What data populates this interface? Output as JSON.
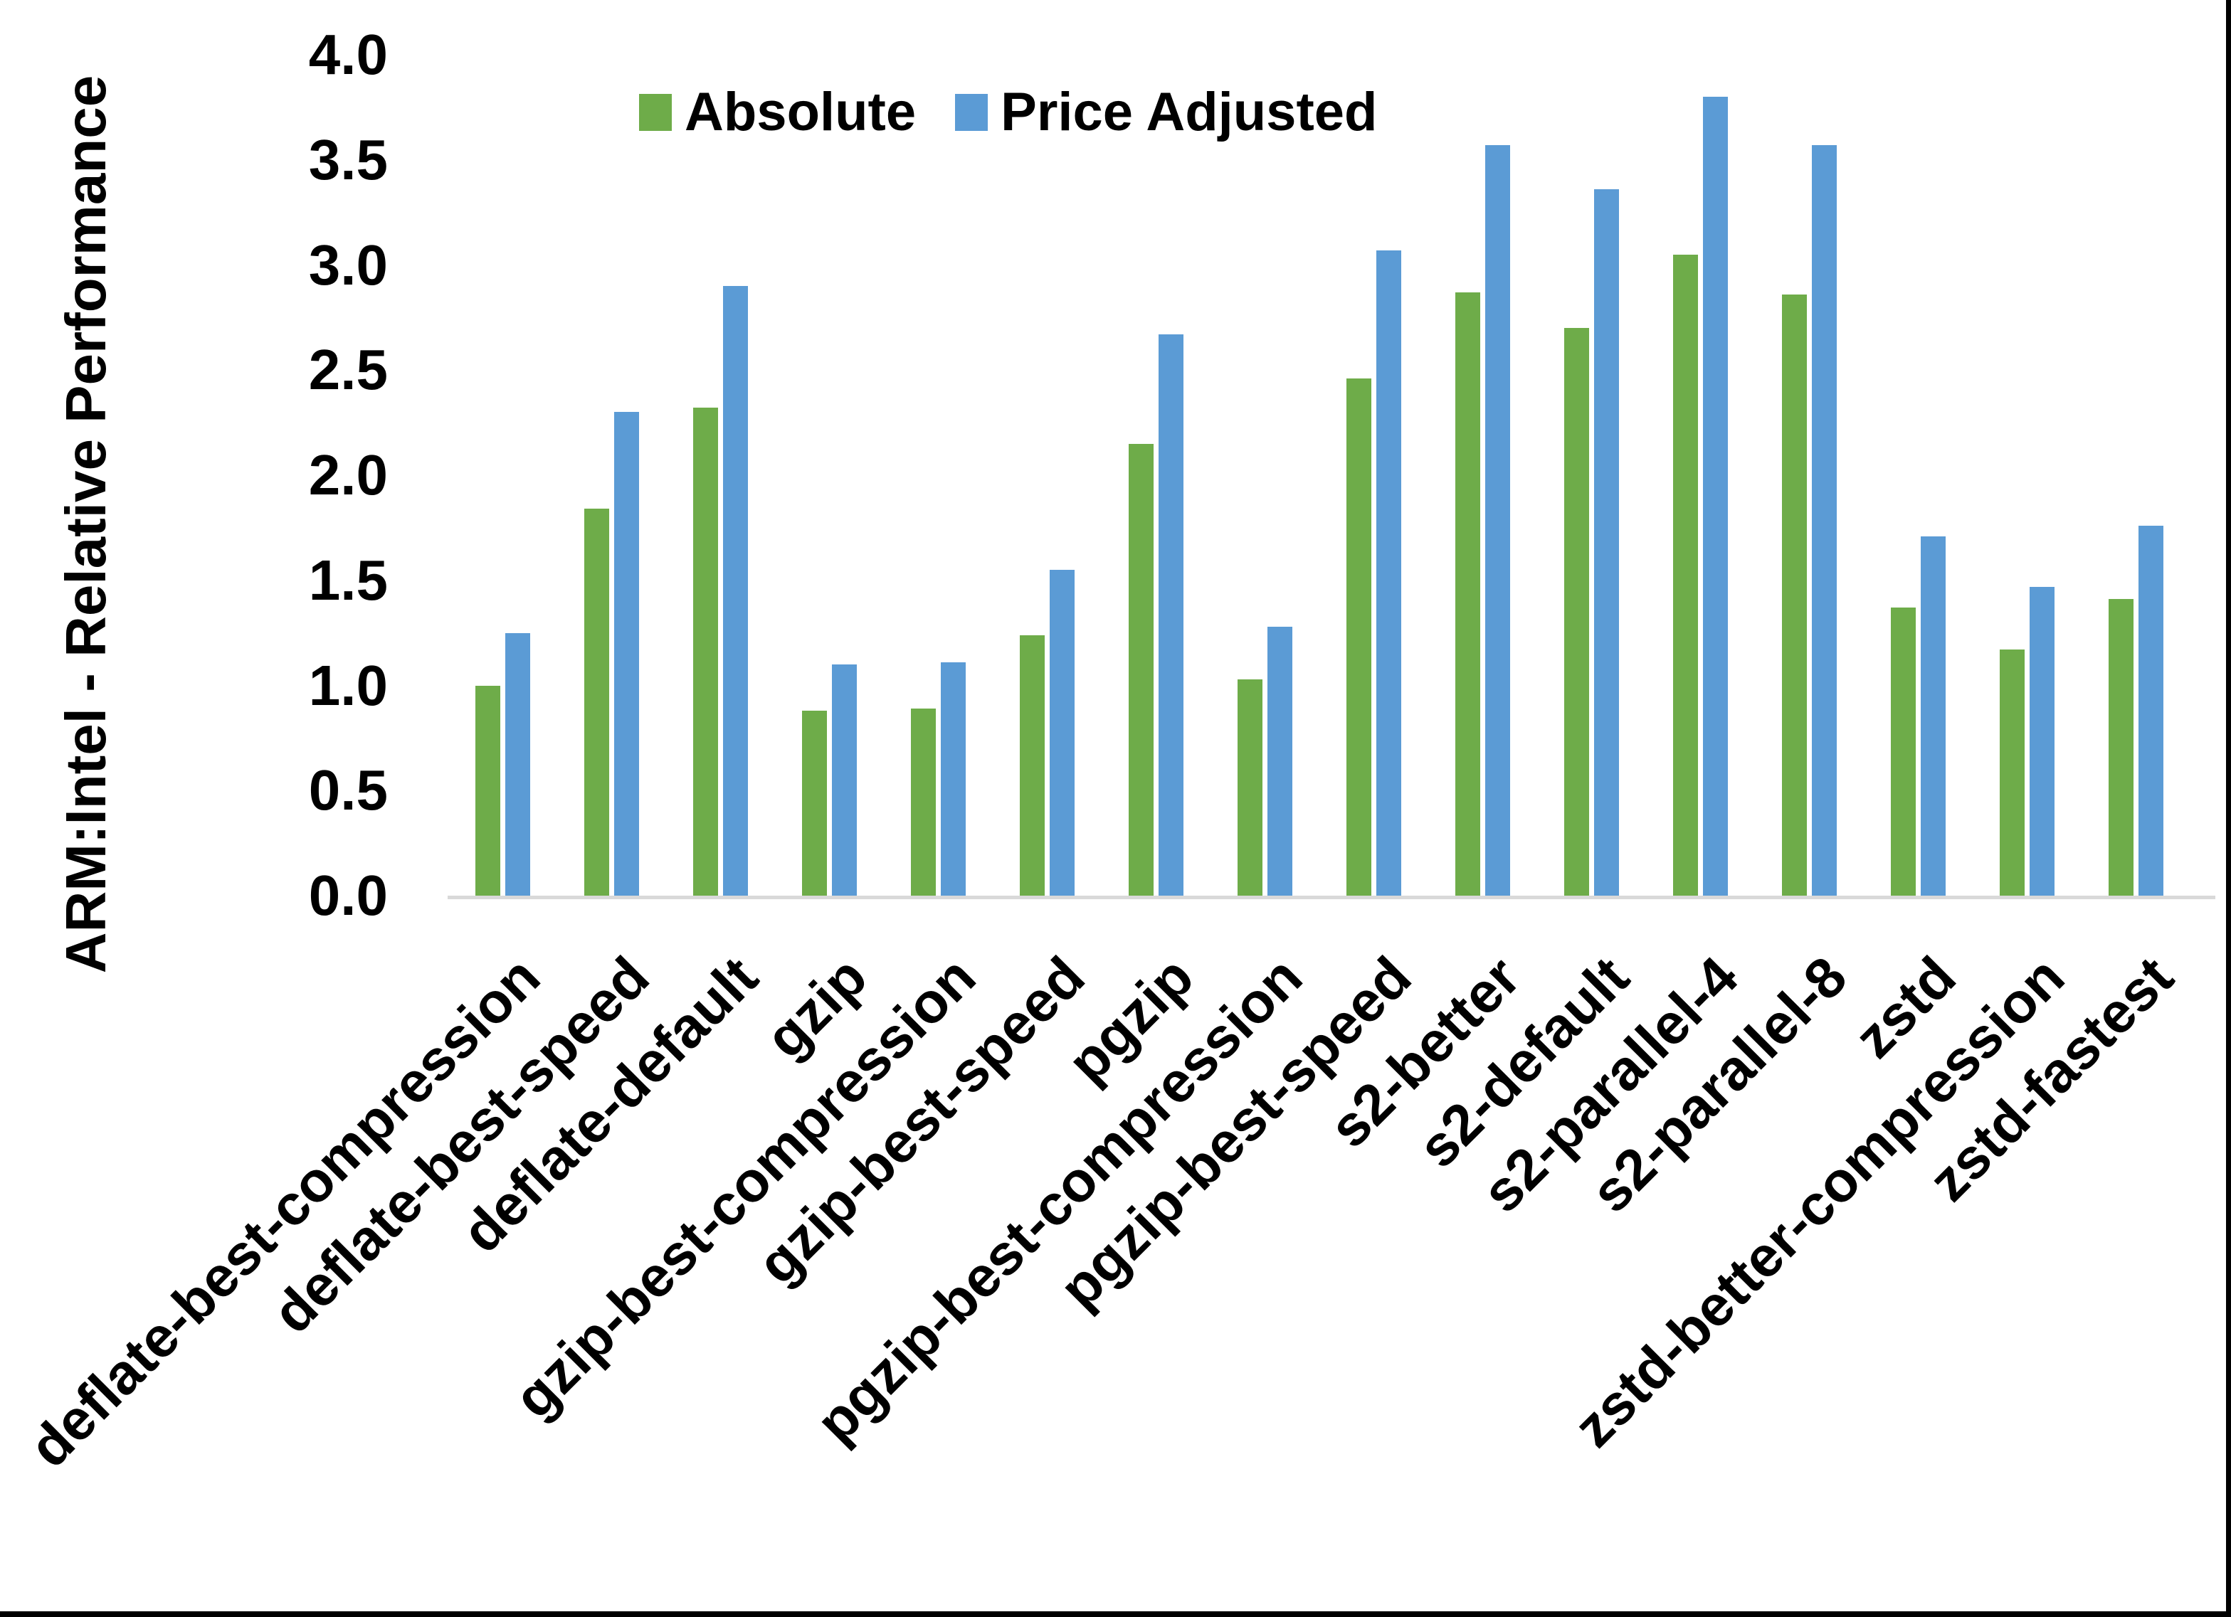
{
  "chart_data": {
    "type": "bar",
    "title": "",
    "xlabel": "",
    "ylabel": "ARM:Intel - Relative Performance",
    "ylim": [
      0,
      4
    ],
    "ytick_step": 0.5,
    "yticks": [
      "0.0",
      "0.5",
      "1.0",
      "1.5",
      "2.0",
      "2.5",
      "3.0",
      "3.5",
      "4.0"
    ],
    "grid": false,
    "legend_position": "top-left-of-center",
    "categories": [
      "deflate-best-compression",
      "deflate-best-speed",
      "deflate-default",
      "gzip",
      "gzip-best-compression",
      "gzip-best-speed",
      "pgzip",
      "pgzip-best-compression",
      "pgzip-best-speed",
      "s2-better",
      "s2-default",
      "s2-parallel-4",
      "s2-parallel-8",
      "zstd",
      "zstd-better-compression",
      "zstd-fastest"
    ],
    "series": [
      {
        "name": "Absolute",
        "color": "#6EAC49",
        "values": [
          1.0,
          1.84,
          2.32,
          0.88,
          0.89,
          1.24,
          2.15,
          1.03,
          2.46,
          2.87,
          2.7,
          3.05,
          2.86,
          1.37,
          1.17,
          1.41
        ]
      },
      {
        "name": "Price Adjusted",
        "color": "#5B9BD5",
        "values": [
          1.25,
          2.3,
          2.9,
          1.1,
          1.11,
          1.55,
          2.67,
          1.28,
          3.07,
          3.57,
          3.36,
          3.8,
          3.57,
          1.71,
          1.47,
          1.76
        ]
      }
    ]
  },
  "colors": {
    "background": "#FFFFFF",
    "axis_line": "#D9D9D9",
    "text": "#000000",
    "frame": "#000000"
  }
}
